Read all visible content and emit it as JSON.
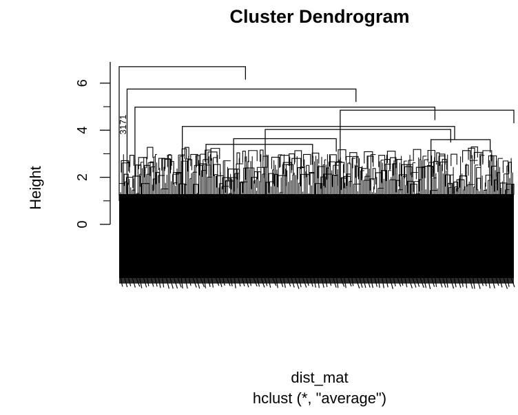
{
  "chart_data": {
    "type": "dendrogram",
    "title": "Cluster Dendrogram",
    "xlabel": "dist_mat",
    "sub": "hclust (*, \"average\")",
    "ylabel": "Height",
    "ylim": [
      0,
      7
    ],
    "yticks": [
      0,
      2,
      4,
      6
    ],
    "yticklabels": [
      "0",
      "2",
      "4",
      "6"
    ],
    "visible_leaf_labels": [
      "3171"
    ],
    "merges": [
      {
        "left_leaf": 0.0,
        "right_leaf": 0.32,
        "height": 6.7
      },
      {
        "left_leaf": 0.02,
        "right_leaf": 0.6,
        "height": 5.75
      },
      {
        "left_leaf": 0.04,
        "right_leaf": 0.8,
        "height": 4.98
      },
      {
        "left_leaf": 0.56,
        "right_leaf": 1.0,
        "height": 4.85
      },
      {
        "left_leaf": 0.16,
        "right_leaf": 0.85,
        "height": 4.16
      },
      {
        "left_leaf": 0.37,
        "right_leaf": 0.84,
        "height": 4.03
      },
      {
        "left_leaf": 0.29,
        "right_leaf": 0.55,
        "height": 3.64
      },
      {
        "left_leaf": 0.22,
        "right_leaf": 0.49,
        "height": 3.4
      },
      {
        "left_leaf": 0.79,
        "right_leaf": 0.94,
        "height": 3.6
      }
    ]
  }
}
